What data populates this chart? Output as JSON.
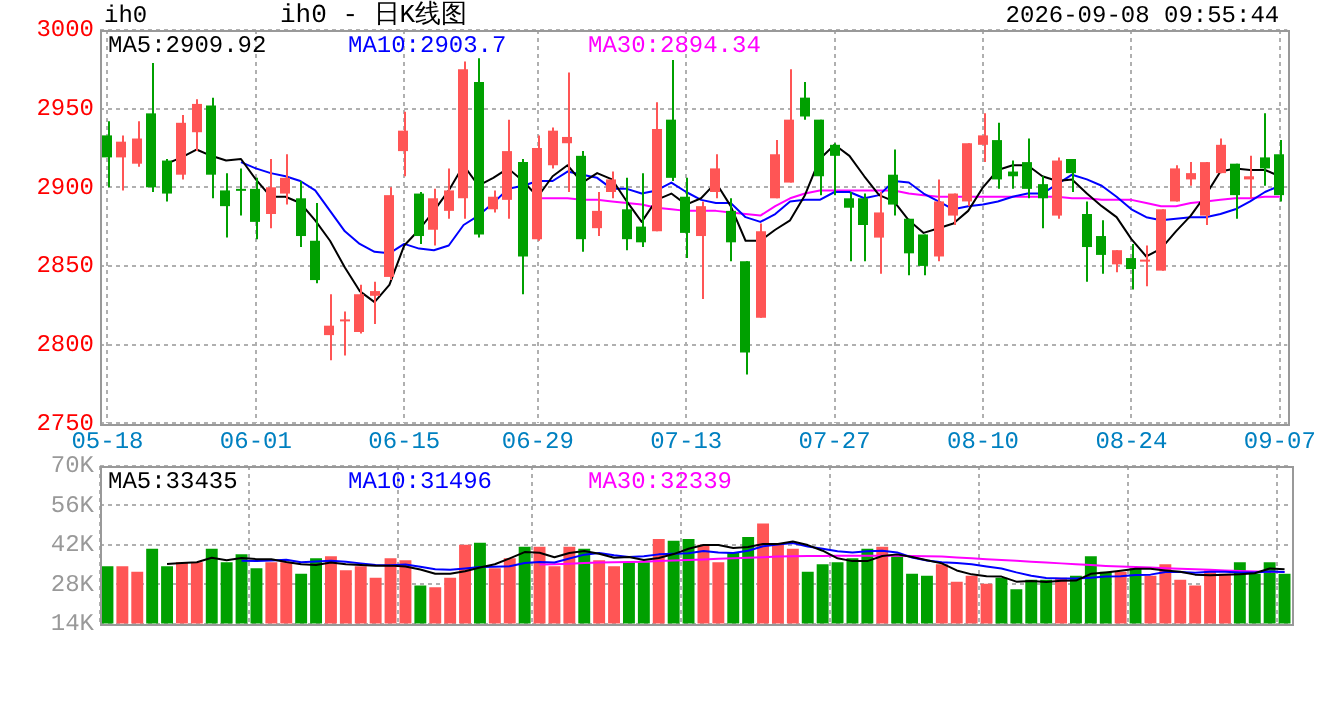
{
  "chart_data": [
    {
      "type": "candlestick",
      "title": "ih0 - 日K线图",
      "annotations": [
        "ih0",
        "2026-09-08 09:55:44"
      ],
      "categories": [
        "05-18",
        null,
        null,
        null,
        null,
        null,
        null,
        null,
        null,
        null,
        "06-01",
        null,
        null,
        null,
        null,
        null,
        null,
        null,
        null,
        null,
        "06-15",
        null,
        null,
        null,
        null,
        null,
        null,
        null,
        null,
        "06-29",
        null,
        null,
        null,
        null,
        null,
        null,
        null,
        null,
        null,
        "07-13",
        null,
        null,
        null,
        null,
        null,
        null,
        null,
        null,
        null,
        "07-27",
        null,
        null,
        null,
        null,
        null,
        null,
        null,
        null,
        null,
        "08-10",
        null,
        null,
        null,
        null,
        null,
        null,
        null,
        null,
        null,
        "08-24",
        null,
        null,
        null,
        null,
        null,
        null,
        null,
        null,
        null,
        "09-07"
      ],
      "ohlc": [
        [
          2933,
          2942,
          2900,
          2919
        ],
        [
          2919,
          2933,
          2898,
          2929
        ],
        [
          2915,
          2942,
          2913,
          2931
        ],
        [
          2947,
          2979,
          2897,
          2900
        ],
        [
          2917,
          2918,
          2891,
          2896
        ],
        [
          2908,
          2946,
          2905,
          2941
        ],
        [
          2935,
          2956,
          2923,
          2953
        ],
        [
          2952,
          2957,
          2893,
          2908
        ],
        [
          2898,
          2909,
          2868,
          2888
        ],
        [
          2899,
          2912,
          2882,
          2898
        ],
        [
          2899,
          2906,
          2867,
          2878
        ],
        [
          2883,
          2918,
          2874,
          2900
        ],
        [
          2896,
          2921,
          2889,
          2906
        ],
        [
          2893,
          2904,
          2862,
          2869
        ],
        [
          2866,
          2890,
          2839,
          2841
        ],
        [
          2806,
          2832,
          2790,
          2812
        ],
        [
          2815,
          2821,
          2793,
          2816
        ],
        [
          2808,
          2838,
          2807,
          2832
        ],
        [
          2831,
          2840,
          2813,
          2834
        ],
        [
          2843,
          2900,
          2841,
          2895
        ],
        [
          2923,
          2948,
          2907,
          2936
        ],
        [
          2896,
          2897,
          2864,
          2869
        ],
        [
          2873,
          2899,
          2863,
          2893
        ],
        [
          2885,
          2912,
          2880,
          2898
        ],
        [
          2893,
          2980,
          2880,
          2975
        ],
        [
          2967,
          2982,
          2868,
          2870
        ],
        [
          2886,
          2898,
          2884,
          2894
        ],
        [
          2892,
          2943,
          2880,
          2923
        ],
        [
          2916,
          2918,
          2832,
          2856
        ],
        [
          2867,
          2933,
          2866,
          2925
        ],
        [
          2914,
          2938,
          2912,
          2936
        ],
        [
          2928,
          2973,
          2897,
          2932
        ],
        [
          2920,
          2923,
          2859,
          2867
        ],
        [
          2874,
          2897,
          2869,
          2885
        ],
        [
          2897,
          2910,
          2893,
          2905
        ],
        [
          2886,
          2906,
          2860,
          2867
        ],
        [
          2875,
          2909,
          2862,
          2865
        ],
        [
          2872,
          2954,
          2872,
          2937
        ],
        [
          2943,
          2981,
          2904,
          2906
        ],
        [
          2894,
          2906,
          2855,
          2871
        ],
        [
          2869,
          2891,
          2829,
          2888
        ],
        [
          2897,
          2921,
          2893,
          2912
        ],
        [
          2885,
          2893,
          2853,
          2865
        ],
        [
          2853,
          2853,
          2781,
          2795
        ],
        [
          2817,
          2877,
          2817,
          2872
        ],
        [
          2893,
          2930,
          2893,
          2921
        ],
        [
          2903,
          2975,
          2903,
          2943
        ],
        [
          2957,
          2967,
          2943,
          2945
        ],
        [
          2943,
          2943,
          2895,
          2907
        ],
        [
          2927,
          2928,
          2895,
          2920
        ],
        [
          2893,
          2897,
          2853,
          2887
        ],
        [
          2893,
          2896,
          2853,
          2876
        ],
        [
          2868,
          2897,
          2845,
          2884
        ],
        [
          2908,
          2924,
          2882,
          2889
        ],
        [
          2880,
          2880,
          2844,
          2858
        ],
        [
          2870,
          2870,
          2844,
          2850
        ],
        [
          2856,
          2905,
          2853,
          2891
        ],
        [
          2882,
          2896,
          2876,
          2896
        ],
        [
          2891,
          2928,
          2888,
          2928
        ],
        [
          2927,
          2947,
          2916,
          2933
        ],
        [
          2930,
          2941,
          2899,
          2905
        ],
        [
          2910,
          2917,
          2899,
          2907
        ],
        [
          2916,
          2931,
          2893,
          2899
        ],
        [
          2902,
          2907,
          2874,
          2893
        ],
        [
          2882,
          2919,
          2880,
          2917
        ],
        [
          2918,
          2918,
          2897,
          2909
        ],
        [
          2883,
          2891,
          2840,
          2862
        ],
        [
          2869,
          2879,
          2845,
          2857
        ],
        [
          2851,
          2860,
          2846,
          2860
        ],
        [
          2855,
          2864,
          2835,
          2848
        ],
        [
          2853,
          2863,
          2837,
          2854
        ],
        [
          2847,
          2886,
          2847,
          2886
        ],
        [
          2891,
          2914,
          2891,
          2912
        ],
        [
          2905,
          2916,
          2901,
          2909
        ],
        [
          2882,
          2916,
          2876,
          2916
        ],
        [
          2909,
          2931,
          2909,
          2927
        ],
        [
          2915,
          2915,
          2880,
          2895
        ],
        [
          2905,
          2920,
          2893,
          2907
        ],
        [
          2919,
          2947,
          2901,
          2912
        ],
        [
          2921,
          2930,
          2891,
          2895
        ]
      ],
      "colors": [
        "#00a000",
        "#ff5555",
        "#ff5555",
        "#00a000",
        "#00a000",
        "#ff5555",
        "#ff5555",
        "#00a000",
        "#00a000",
        "#00a000",
        "#00a000",
        "#ff5555",
        "#ff5555",
        "#00a000",
        "#00a000",
        "#ff5555",
        "#ff5555",
        "#ff5555",
        "#ff5555",
        "#ff5555",
        "#ff5555",
        "#00a000",
        "#ff5555",
        "#ff5555",
        "#ff5555",
        "#00a000",
        "#ff5555",
        "#ff5555",
        "#00a000",
        "#ff5555",
        "#ff5555",
        "#ff5555",
        "#00a000",
        "#ff5555",
        "#ff5555",
        "#00a000",
        "#00a000",
        "#ff5555",
        "#00a000",
        "#00a000",
        "#ff5555",
        "#ff5555",
        "#00a000",
        "#00a000",
        "#ff5555",
        "#ff5555",
        "#ff5555",
        "#00a000",
        "#00a000",
        "#00a000",
        "#00a000",
        "#00a000",
        "#ff5555",
        "#00a000",
        "#00a000",
        "#00a000",
        "#ff5555",
        "#ff5555",
        "#ff5555",
        "#ff5555",
        "#00a000",
        "#00a000",
        "#00a000",
        "#00a000",
        "#ff5555",
        "#00a000",
        "#00a000",
        "#00a000",
        "#ff5555",
        "#00a000",
        "#ff5555",
        "#ff5555",
        "#ff5555",
        "#ff5555",
        "#ff5555",
        "#ff5555",
        "#00a000",
        "#ff5555",
        "#00a000",
        "#00a000"
      ],
      "series": [
        {
          "name": "MA5:2909.92",
          "color": "#000000",
          "type": "line",
          "values": [
            null,
            null,
            null,
            null,
            2915,
            2919,
            2924,
            2920,
            2917,
            2918,
            2905,
            2894,
            2894,
            2890,
            2879,
            2866,
            2849,
            2834,
            2827,
            2838,
            2863,
            2873,
            2885,
            2898,
            2914,
            2901,
            2906,
            2912,
            2904,
            2894,
            2907,
            2914,
            2903,
            2909,
            2905,
            2891,
            2878,
            2892,
            2896,
            2889,
            2893,
            2903,
            2888,
            2866,
            2866,
            2873,
            2879,
            2895,
            2918,
            2927,
            2920,
            2907,
            2895,
            2891,
            2879,
            2871,
            2874,
            2877,
            2885,
            2900,
            2911,
            2914,
            2914,
            2907,
            2904,
            2905,
            2896,
            2888,
            2881,
            2867,
            2856,
            2861,
            2872,
            2882,
            2895,
            2910,
            2912,
            2911,
            2911,
            2907
          ]
        },
        {
          "name": "MA10:2903.7",
          "color": "#0000ff",
          "type": "line",
          "values": [
            null,
            null,
            null,
            null,
            null,
            null,
            null,
            null,
            null,
            2916,
            2912,
            2909,
            2907,
            2904,
            2898,
            2885,
            2872,
            2864,
            2859,
            2858,
            2864,
            2861,
            2860,
            2863,
            2876,
            2882,
            2890,
            2899,
            2901,
            2904,
            2904,
            2910,
            2908,
            2906,
            2899,
            2899,
            2896,
            2898,
            2903,
            2897,
            2892,
            2890,
            2890,
            2881,
            2878,
            2883,
            2891,
            2892,
            2892,
            2897,
            2897,
            2893,
            2895,
            2904,
            2903,
            2896,
            2891,
            2886,
            2888,
            2889,
            2891,
            2894,
            2896,
            2896,
            2902,
            2908,
            2905,
            2901,
            2894,
            2886,
            2881,
            2879,
            2880,
            2881,
            2881,
            2883,
            2886,
            2891,
            2897,
            2901
          ]
        },
        {
          "name": "MA30:2894.34",
          "color": "#ff00ff",
          "type": "line",
          "values": [
            null,
            null,
            null,
            null,
            null,
            null,
            null,
            null,
            null,
            null,
            null,
            null,
            null,
            null,
            null,
            null,
            null,
            null,
            null,
            null,
            null,
            null,
            null,
            null,
            null,
            null,
            null,
            null,
            null,
            2893,
            2893,
            2893,
            2892,
            2892,
            2891,
            2890,
            2889,
            2887,
            2886,
            2885,
            2885,
            2885,
            2884,
            2883,
            2882,
            2888,
            2893,
            2896,
            2898,
            2898,
            2898,
            2898,
            2898,
            2898,
            2896,
            2895,
            2894,
            2894,
            2894,
            2894,
            2894,
            2894,
            2894,
            2894,
            2894,
            2893,
            2893,
            2892,
            2892,
            2892,
            2890,
            2888,
            2888,
            2890,
            2891,
            2892,
            2893,
            2893,
            2894,
            2894
          ]
        }
      ],
      "ylim": [
        2750,
        3000
      ],
      "yticks": [
        2750,
        2800,
        2850,
        2900,
        2950,
        3000
      ],
      "grid": true,
      "legend": "top left"
    },
    {
      "type": "bar",
      "tick_labels": "y",
      "categories": [
        null,
        null,
        null,
        null,
        null,
        null,
        null,
        null,
        null,
        null,
        null,
        null,
        null,
        null,
        null,
        null,
        null,
        null,
        null,
        null,
        null,
        null,
        null,
        null,
        null,
        null,
        null,
        null,
        null,
        null,
        null,
        null,
        null,
        null,
        null,
        null,
        null,
        null,
        null,
        null,
        null,
        null,
        null,
        null,
        null,
        null,
        null,
        null,
        null,
        null,
        null,
        null,
        null,
        null,
        null,
        null,
        null,
        null,
        null,
        null,
        null,
        null,
        null,
        null,
        null,
        null,
        null,
        null,
        null,
        null,
        null,
        null,
        null,
        null,
        null,
        null,
        null,
        null,
        null,
        null
      ],
      "values": [
        34.4,
        34.4,
        32.4,
        40.6,
        34.4,
        35.8,
        35.8,
        40.6,
        35.8,
        38.6,
        33.7,
        35.8,
        35.8,
        31.7,
        37.2,
        37.9,
        33.0,
        34.4,
        30.3,
        37.2,
        36.5,
        27.5,
        26.9,
        30.3,
        42.0,
        42.7,
        33.7,
        37.2,
        41.3,
        41.3,
        34.4,
        41.3,
        40.6,
        36.5,
        34.4,
        35.8,
        35.8,
        44.1,
        43.4,
        44.1,
        42.0,
        35.8,
        39.2,
        44.8,
        49.6,
        42.0,
        40.6,
        32.4,
        35.1,
        35.8,
        37.2,
        40.6,
        41.3,
        37.9,
        31.7,
        31.0,
        35.1,
        28.9,
        31.0,
        28.2,
        30.3,
        26.2,
        29.6,
        29.6,
        30.3,
        31.0,
        37.9,
        32.4,
        32.4,
        33.7,
        31.0,
        35.1,
        29.6,
        27.5,
        33.0,
        31.7,
        35.8,
        31.7,
        35.8,
        31.7
      ],
      "colors": [
        "#00a000",
        "#ff5555",
        "#ff5555",
        "#00a000",
        "#00a000",
        "#ff5555",
        "#ff5555",
        "#00a000",
        "#00a000",
        "#00a000",
        "#00a000",
        "#ff5555",
        "#ff5555",
        "#00a000",
        "#00a000",
        "#ff5555",
        "#ff5555",
        "#ff5555",
        "#ff5555",
        "#ff5555",
        "#ff5555",
        "#00a000",
        "#ff5555",
        "#ff5555",
        "#ff5555",
        "#00a000",
        "#ff5555",
        "#ff5555",
        "#00a000",
        "#ff5555",
        "#ff5555",
        "#ff5555",
        "#00a000",
        "#ff5555",
        "#ff5555",
        "#00a000",
        "#00a000",
        "#ff5555",
        "#00a000",
        "#00a000",
        "#ff5555",
        "#ff5555",
        "#00a000",
        "#00a000",
        "#ff5555",
        "#ff5555",
        "#ff5555",
        "#00a000",
        "#00a000",
        "#00a000",
        "#00a000",
        "#00a000",
        "#ff5555",
        "#00a000",
        "#00a000",
        "#00a000",
        "#ff5555",
        "#ff5555",
        "#ff5555",
        "#ff5555",
        "#00a000",
        "#00a000",
        "#00a000",
        "#00a000",
        "#ff5555",
        "#00a000",
        "#00a000",
        "#00a000",
        "#ff5555",
        "#00a000",
        "#ff5555",
        "#ff5555",
        "#ff5555",
        "#ff5555",
        "#ff5555",
        "#ff5555",
        "#00a000",
        "#00a000",
        "#00a000",
        "#00a000"
      ],
      "series": [
        {
          "name": "MA5:33435",
          "color": "#000000",
          "type": "line",
          "values": [
            null,
            null,
            null,
            null,
            35.2,
            35.5,
            35.8,
            37.4,
            36.5,
            37.3,
            36.9,
            36.9,
            35.9,
            35.1,
            34.8,
            35.7,
            35.1,
            34.8,
            34.6,
            34.6,
            34.3,
            33.2,
            31.7,
            31.7,
            32.6,
            33.9,
            35.1,
            37.2,
            39.4,
            39.2,
            37.6,
            39.1,
            39.8,
            38.8,
            37.4,
            37.7,
            36.6,
            37.3,
            38.7,
            40.6,
            41.9,
            41.9,
            40.9,
            41.2,
            42.3,
            42.3,
            43.2,
            41.9,
            39.9,
            37.2,
            36.2,
            36.2,
            38.0,
            38.6,
            37.7,
            36.5,
            35.4,
            32.9,
            31.5,
            30.8,
            30.7,
            28.9,
            29.1,
            28.8,
            29.2,
            29.3,
            31.7,
            32.2,
            32.8,
            33.5,
            33.5,
            32.9,
            32.4,
            31.4,
            31.2,
            31.4,
            31.5,
            31.9,
            33.6,
            33.3
          ]
        },
        {
          "name": "MA10:31496",
          "color": "#0000ff",
          "type": "line",
          "values": [
            null,
            null,
            null,
            null,
            null,
            null,
            null,
            null,
            null,
            36.3,
            36.2,
            36.4,
            36.7,
            35.8,
            36.1,
            36.3,
            36.0,
            35.4,
            34.8,
            34.7,
            35.0,
            34.2,
            33.3,
            33.1,
            33.6,
            34.1,
            34.2,
            34.4,
            35.5,
            35.9,
            35.7,
            37.1,
            38.5,
            39.1,
            38.3,
            37.7,
            37.9,
            38.6,
            38.8,
            39.0,
            39.8,
            39.3,
            39.1,
            39.9,
            41.5,
            42.1,
            42.6,
            41.4,
            40.6,
            39.7,
            39.3,
            39.7,
            39.9,
            39.3,
            37.5,
            36.4,
            35.8,
            35.5,
            35.1,
            34.3,
            33.6,
            32.2,
            31.0,
            30.2,
            30.0,
            30.0,
            30.3,
            30.7,
            30.8,
            31.3,
            31.4,
            32.3,
            32.3,
            32.1,
            32.4,
            32.4,
            32.2,
            32.2,
            32.5,
            32.3
          ]
        },
        {
          "name": "MA30:32339",
          "color": "#ff00ff",
          "type": "line",
          "values": [
            null,
            null,
            null,
            null,
            null,
            null,
            null,
            null,
            null,
            null,
            null,
            null,
            null,
            null,
            null,
            null,
            null,
            null,
            null,
            null,
            null,
            null,
            null,
            null,
            null,
            null,
            null,
            null,
            null,
            35.0,
            35.1,
            35.3,
            35.5,
            35.7,
            35.8,
            35.9,
            36.0,
            36.2,
            36.4,
            36.6,
            36.8,
            37.0,
            37.2,
            37.4,
            37.6,
            37.8,
            37.9,
            38.0,
            38.0,
            38.1,
            38.1,
            38.1,
            38.1,
            38.1,
            38.0,
            37.9,
            37.8,
            37.5,
            37.2,
            36.9,
            36.6,
            36.3,
            36.0,
            35.7,
            35.4,
            35.1,
            34.8,
            34.5,
            34.3,
            34.1,
            33.9,
            33.7,
            33.5,
            33.3,
            33.1,
            32.9,
            32.7,
            32.5,
            32.4,
            32.3
          ]
        }
      ],
      "ylim": [
        14,
        70
      ],
      "yticks": [
        {
          "value": 14,
          "label": "14K"
        },
        {
          "value": 28,
          "label": "28K"
        },
        {
          "value": 42,
          "label": "42K"
        },
        {
          "value": 56,
          "label": "56K"
        },
        {
          "value": 70,
          "label": "70K"
        }
      ],
      "grid": true,
      "legend": "top left"
    }
  ]
}
